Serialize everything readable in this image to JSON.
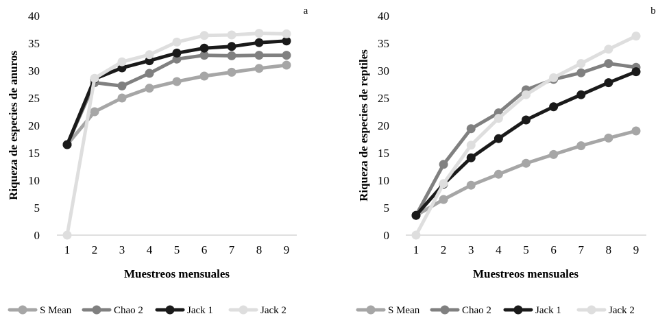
{
  "chart_data": [
    {
      "type": "line",
      "panel_label": "a",
      "xlabel": "Muestreos mensuales",
      "ylabel": "Riqueza de especies de anuros",
      "x": [
        1,
        2,
        3,
        4,
        5,
        6,
        7,
        8,
        9
      ],
      "ylim": [
        0,
        40
      ],
      "yticks": [
        0,
        5,
        10,
        15,
        20,
        25,
        30,
        35,
        40
      ],
      "grid": false,
      "legend_position": "bottom",
      "series": [
        {
          "name": "S Mean",
          "color": "#a6a6a6",
          "values": [
            16.5,
            22.5,
            25.0,
            26.8,
            28.0,
            29.0,
            29.7,
            30.4,
            31.0
          ]
        },
        {
          "name": "Chao 2",
          "color": "#808080",
          "values": [
            16.5,
            27.8,
            27.2,
            29.5,
            32.1,
            32.8,
            32.7,
            32.8,
            32.8
          ]
        },
        {
          "name": "Jack 1",
          "color": "#1a1a1a",
          "values": [
            16.5,
            28.5,
            30.5,
            31.8,
            33.2,
            34.1,
            34.4,
            35.1,
            35.4
          ]
        },
        {
          "name": "Jack 2",
          "color": "#dedede",
          "values": [
            0.0,
            28.6,
            31.6,
            32.9,
            35.2,
            36.4,
            36.5,
            36.8,
            36.7
          ]
        }
      ]
    },
    {
      "type": "line",
      "panel_label": "b",
      "xlabel": "Muestreos mensuales",
      "ylabel": "Riqueza de especies de reptiles",
      "x": [
        1,
        2,
        3,
        4,
        5,
        6,
        7,
        8,
        9
      ],
      "ylim": [
        0,
        40
      ],
      "yticks": [
        0,
        5,
        10,
        15,
        20,
        25,
        30,
        35,
        40
      ],
      "grid": false,
      "legend_position": "bottom",
      "series": [
        {
          "name": "S Mean",
          "color": "#a6a6a6",
          "values": [
            3.6,
            6.5,
            9.1,
            11.1,
            13.1,
            14.7,
            16.3,
            17.7,
            19.0
          ]
        },
        {
          "name": "Chao 2",
          "color": "#808080",
          "values": [
            3.6,
            12.9,
            19.4,
            22.3,
            26.5,
            28.4,
            29.6,
            31.3,
            30.6
          ]
        },
        {
          "name": "Jack 1",
          "color": "#1a1a1a",
          "values": [
            3.6,
            9.3,
            14.1,
            17.6,
            21.0,
            23.4,
            25.6,
            27.8,
            29.8
          ]
        },
        {
          "name": "Jack 2",
          "color": "#dedede",
          "values": [
            0.0,
            9.4,
            16.4,
            21.3,
            25.6,
            28.7,
            31.3,
            33.9,
            36.3
          ]
        }
      ]
    }
  ]
}
